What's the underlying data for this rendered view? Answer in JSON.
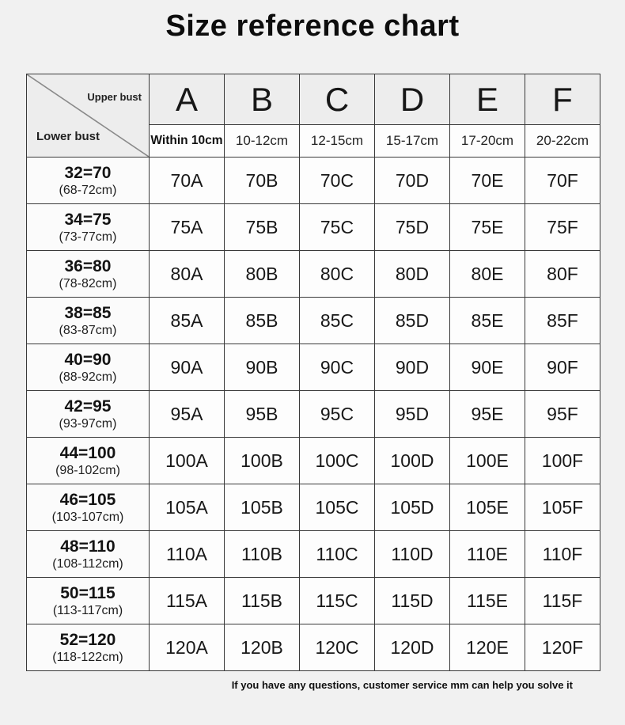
{
  "title": "Size reference chart",
  "corner": {
    "upper_label": "Upper bust",
    "lower_label": "Lower bust"
  },
  "footer": "If you have any questions, customer service mm can help you solve it",
  "colors": {
    "page_bg": "#f1f1f1",
    "header_bg": "#ededed",
    "cell_bg": "#fdfdfd",
    "border": "#3a3a3a",
    "diagonal": "#8a8a8a",
    "text": "#1c1c1c"
  },
  "chart_data": {
    "type": "table",
    "title": "Size reference chart",
    "row_axis_label": "Lower bust",
    "column_axis_label": "Upper bust",
    "columns": [
      {
        "cup": "A",
        "upper_bust_diff": "Within 10cm"
      },
      {
        "cup": "B",
        "upper_bust_diff": "10-12cm"
      },
      {
        "cup": "C",
        "upper_bust_diff": "12-15cm"
      },
      {
        "cup": "D",
        "upper_bust_diff": "15-17cm"
      },
      {
        "cup": "E",
        "upper_bust_diff": "17-20cm"
      },
      {
        "cup": "F",
        "upper_bust_diff": "20-22cm"
      }
    ],
    "rows": [
      {
        "lower_bust": "32=70",
        "lower_bust_range": "(68-72cm)",
        "sizes": [
          "70A",
          "70B",
          "70C",
          "70D",
          "70E",
          "70F"
        ]
      },
      {
        "lower_bust": "34=75",
        "lower_bust_range": "(73-77cm)",
        "sizes": [
          "75A",
          "75B",
          "75C",
          "75D",
          "75E",
          "75F"
        ]
      },
      {
        "lower_bust": "36=80",
        "lower_bust_range": "(78-82cm)",
        "sizes": [
          "80A",
          "80B",
          "80C",
          "80D",
          "80E",
          "80F"
        ]
      },
      {
        "lower_bust": "38=85",
        "lower_bust_range": "(83-87cm)",
        "sizes": [
          "85A",
          "85B",
          "85C",
          "85D",
          "85E",
          "85F"
        ]
      },
      {
        "lower_bust": "40=90",
        "lower_bust_range": "(88-92cm)",
        "sizes": [
          "90A",
          "90B",
          "90C",
          "90D",
          "90E",
          "90F"
        ]
      },
      {
        "lower_bust": "42=95",
        "lower_bust_range": "(93-97cm)",
        "sizes": [
          "95A",
          "95B",
          "95C",
          "95D",
          "95E",
          "95F"
        ]
      },
      {
        "lower_bust": "44=100",
        "lower_bust_range": "(98-102cm)",
        "sizes": [
          "100A",
          "100B",
          "100C",
          "100D",
          "100E",
          "100F"
        ]
      },
      {
        "lower_bust": "46=105",
        "lower_bust_range": "(103-107cm)",
        "sizes": [
          "105A",
          "105B",
          "105C",
          "105D",
          "105E",
          "105F"
        ]
      },
      {
        "lower_bust": "48=110",
        "lower_bust_range": "(108-112cm)",
        "sizes": [
          "110A",
          "110B",
          "110C",
          "110D",
          "110E",
          "110F"
        ]
      },
      {
        "lower_bust": "50=115",
        "lower_bust_range": "(113-117cm)",
        "sizes": [
          "115A",
          "115B",
          "115C",
          "115D",
          "115E",
          "115F"
        ]
      },
      {
        "lower_bust": "52=120",
        "lower_bust_range": "(118-122cm)",
        "sizes": [
          "120A",
          "120B",
          "120C",
          "120D",
          "120E",
          "120F"
        ]
      }
    ]
  }
}
